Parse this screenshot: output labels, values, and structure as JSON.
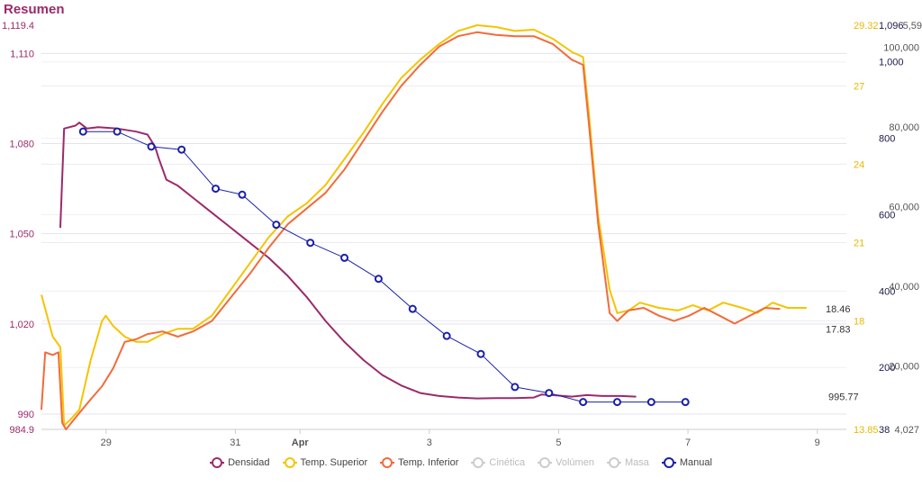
{
  "chart_data": {
    "type": "line",
    "title": "Resumen",
    "x_ticks": [
      "29",
      "31",
      "Apr",
      "3",
      "5",
      "7",
      "9"
    ],
    "x_range": [
      "Mar 28 00:00",
      "Apr 9 10:00"
    ],
    "axes": {
      "density": {
        "color": "#9b2a6b",
        "min": 984.9,
        "max": 1119.4,
        "ticks": [
          "990",
          "1,020",
          "1,050",
          "1,080",
          "1,110"
        ],
        "min_label": "984.9",
        "max_label": "1,119.4"
      },
      "temperature": {
        "color": "#f5c400",
        "min": 13.85,
        "max": 29.32,
        "ticks": [
          "18",
          "21",
          "24",
          "27"
        ],
        "min_label": "13.85",
        "max_label": "29.32"
      },
      "axis3": {
        "color": "#1a1a4a",
        "ticks": [
          "200",
          "400",
          "600",
          "800",
          "1,000"
        ],
        "max_label": "1,096",
        "min_label": "38"
      },
      "axis4": {
        "color": "#555555",
        "ticks": [
          "20,000",
          "40,000",
          "60,000",
          "80,000",
          "100,000"
        ],
        "max_label": "5,59",
        "min_label": "4,027"
      }
    },
    "series": [
      {
        "name": "Densidad",
        "color": "#9b2a6b",
        "axis": "density",
        "last_label": "995.77",
        "points": [
          [
            0.5,
            1052
          ],
          [
            0.6,
            1085
          ],
          [
            0.9,
            1086
          ],
          [
            1.0,
            1087
          ],
          [
            1.2,
            1085
          ],
          [
            1.5,
            1085.5
          ],
          [
            2.0,
            1085
          ],
          [
            2.5,
            1084
          ],
          [
            2.8,
            1083
          ],
          [
            3.0,
            1079
          ],
          [
            3.1,
            1075
          ],
          [
            3.3,
            1068
          ],
          [
            3.6,
            1066
          ],
          [
            4.0,
            1062
          ],
          [
            4.5,
            1057
          ],
          [
            5.0,
            1052
          ],
          [
            5.5,
            1047
          ],
          [
            6.0,
            1042
          ],
          [
            6.5,
            1036
          ],
          [
            7.0,
            1029
          ],
          [
            7.5,
            1021
          ],
          [
            8.0,
            1014
          ],
          [
            8.5,
            1008
          ],
          [
            9.0,
            1003
          ],
          [
            9.5,
            999.5
          ],
          [
            10.0,
            997
          ],
          [
            10.5,
            996
          ],
          [
            11.0,
            995.5
          ],
          [
            11.5,
            995.2
          ],
          [
            12.0,
            995.3
          ],
          [
            12.5,
            995.3
          ],
          [
            13.0,
            995.5
          ],
          [
            13.2,
            996.5
          ],
          [
            13.6,
            996.2
          ],
          [
            14.0,
            995.8
          ],
          [
            14.4,
            996.3
          ],
          [
            14.8,
            996
          ],
          [
            15.3,
            996
          ],
          [
            15.7,
            995.8
          ]
        ]
      },
      {
        "name": "Temp. Superior",
        "color": "#f5c400",
        "axis": "temperature",
        "last_label": "",
        "points": [
          [
            0,
            19.0
          ],
          [
            0.3,
            17.4
          ],
          [
            0.5,
            17.0
          ],
          [
            0.6,
            14.0
          ],
          [
            0.75,
            14.2
          ],
          [
            1.0,
            14.6
          ],
          [
            1.3,
            16.5
          ],
          [
            1.6,
            18.0
          ],
          [
            1.7,
            18.2
          ],
          [
            1.9,
            17.8
          ],
          [
            2.2,
            17.4
          ],
          [
            2.5,
            17.2
          ],
          [
            2.8,
            17.2
          ],
          [
            3.2,
            17.5
          ],
          [
            3.6,
            17.7
          ],
          [
            4.0,
            17.7
          ],
          [
            4.5,
            18.2
          ],
          [
            5.0,
            19.2
          ],
          [
            5.5,
            20.2
          ],
          [
            6.0,
            21.2
          ],
          [
            6.5,
            22.0
          ],
          [
            7.0,
            22.5
          ],
          [
            7.5,
            23.2
          ],
          [
            8.0,
            24.2
          ],
          [
            8.5,
            25.2
          ],
          [
            9.0,
            26.3
          ],
          [
            9.5,
            27.3
          ],
          [
            10.0,
            28.0
          ],
          [
            10.5,
            28.6
          ],
          [
            11.0,
            29.1
          ],
          [
            11.5,
            29.32
          ],
          [
            12.0,
            29.25
          ],
          [
            12.5,
            29.1
          ],
          [
            13.0,
            29.15
          ],
          [
            13.5,
            28.8
          ],
          [
            14.0,
            28.3
          ],
          [
            14.3,
            28.1
          ],
          [
            14.45,
            26.0
          ],
          [
            14.7,
            22.0
          ],
          [
            15.0,
            19.2
          ],
          [
            15.2,
            18.3
          ],
          [
            15.5,
            18.4
          ],
          [
            15.8,
            18.7
          ],
          [
            16.3,
            18.5
          ],
          [
            16.8,
            18.4
          ],
          [
            17.2,
            18.6
          ],
          [
            17.6,
            18.4
          ],
          [
            18.0,
            18.7
          ],
          [
            18.5,
            18.5
          ],
          [
            18.9,
            18.3
          ],
          [
            19.3,
            18.7
          ],
          [
            19.7,
            18.5
          ],
          [
            20.2,
            18.5
          ]
        ]
      },
      {
        "name": "Temp. Inferior",
        "color": "#f26b3a",
        "axis": "temperature",
        "last_label": "18.46",
        "points": [
          [
            0,
            14.6
          ],
          [
            0.1,
            16.8
          ],
          [
            0.3,
            16.7
          ],
          [
            0.45,
            16.8
          ],
          [
            0.55,
            14.1
          ],
          [
            0.65,
            13.85
          ],
          [
            0.9,
            14.3
          ],
          [
            1.3,
            15.0
          ],
          [
            1.6,
            15.5
          ],
          [
            1.9,
            16.2
          ],
          [
            2.2,
            17.2
          ],
          [
            2.5,
            17.3
          ],
          [
            2.8,
            17.5
          ],
          [
            3.2,
            17.6
          ],
          [
            3.6,
            17.4
          ],
          [
            4.0,
            17.6
          ],
          [
            4.5,
            18.0
          ],
          [
            5.0,
            18.9
          ],
          [
            5.5,
            19.8
          ],
          [
            6.0,
            20.8
          ],
          [
            6.5,
            21.7
          ],
          [
            7.0,
            22.3
          ],
          [
            7.5,
            22.9
          ],
          [
            8.0,
            23.8
          ],
          [
            8.5,
            24.9
          ],
          [
            9.0,
            26.0
          ],
          [
            9.5,
            27.0
          ],
          [
            10.0,
            27.8
          ],
          [
            10.5,
            28.5
          ],
          [
            11.0,
            28.9
          ],
          [
            11.5,
            29.05
          ],
          [
            12.0,
            28.95
          ],
          [
            12.5,
            28.9
          ],
          [
            13.0,
            28.9
          ],
          [
            13.5,
            28.6
          ],
          [
            14.0,
            28.0
          ],
          [
            14.3,
            27.8
          ],
          [
            14.45,
            25.6
          ],
          [
            14.7,
            21.7
          ],
          [
            15.0,
            18.3
          ],
          [
            15.2,
            18.0
          ],
          [
            15.5,
            18.4
          ],
          [
            15.9,
            18.5
          ],
          [
            16.3,
            18.2
          ],
          [
            16.7,
            18.0
          ],
          [
            17.1,
            18.2
          ],
          [
            17.5,
            18.5
          ],
          [
            17.9,
            18.2
          ],
          [
            18.3,
            17.9
          ],
          [
            18.7,
            18.2
          ],
          [
            19.1,
            18.5
          ],
          [
            19.5,
            18.46
          ]
        ]
      },
      {
        "name": "Cinética",
        "color": "#cccccc",
        "axis": "density",
        "disabled": true,
        "points": []
      },
      {
        "name": "Volúmen",
        "color": "#cccccc",
        "axis": "density",
        "disabled": true,
        "points": []
      },
      {
        "name": "Masa",
        "color": "#cccccc",
        "axis": "density",
        "disabled": true,
        "points": []
      },
      {
        "name": "Manual",
        "color": "#1a1fa8",
        "axis": "density",
        "marker": "circle",
        "points": [
          [
            1.1,
            1084
          ],
          [
            2.0,
            1084
          ],
          [
            2.9,
            1079
          ],
          [
            3.7,
            1078
          ],
          [
            4.6,
            1065
          ],
          [
            5.3,
            1063
          ],
          [
            6.2,
            1053
          ],
          [
            7.1,
            1047
          ],
          [
            8.0,
            1042
          ],
          [
            8.9,
            1035
          ],
          [
            9.8,
            1025
          ],
          [
            10.7,
            1016
          ],
          [
            11.6,
            1010
          ],
          [
            12.5,
            999
          ],
          [
            13.4,
            997
          ],
          [
            14.3,
            994
          ],
          [
            15.2,
            994
          ],
          [
            16.1,
            994
          ],
          [
            17.0,
            994
          ]
        ]
      }
    ],
    "annotation_labels": [
      "17.83"
    ],
    "grid": true,
    "legend": "bottom"
  }
}
